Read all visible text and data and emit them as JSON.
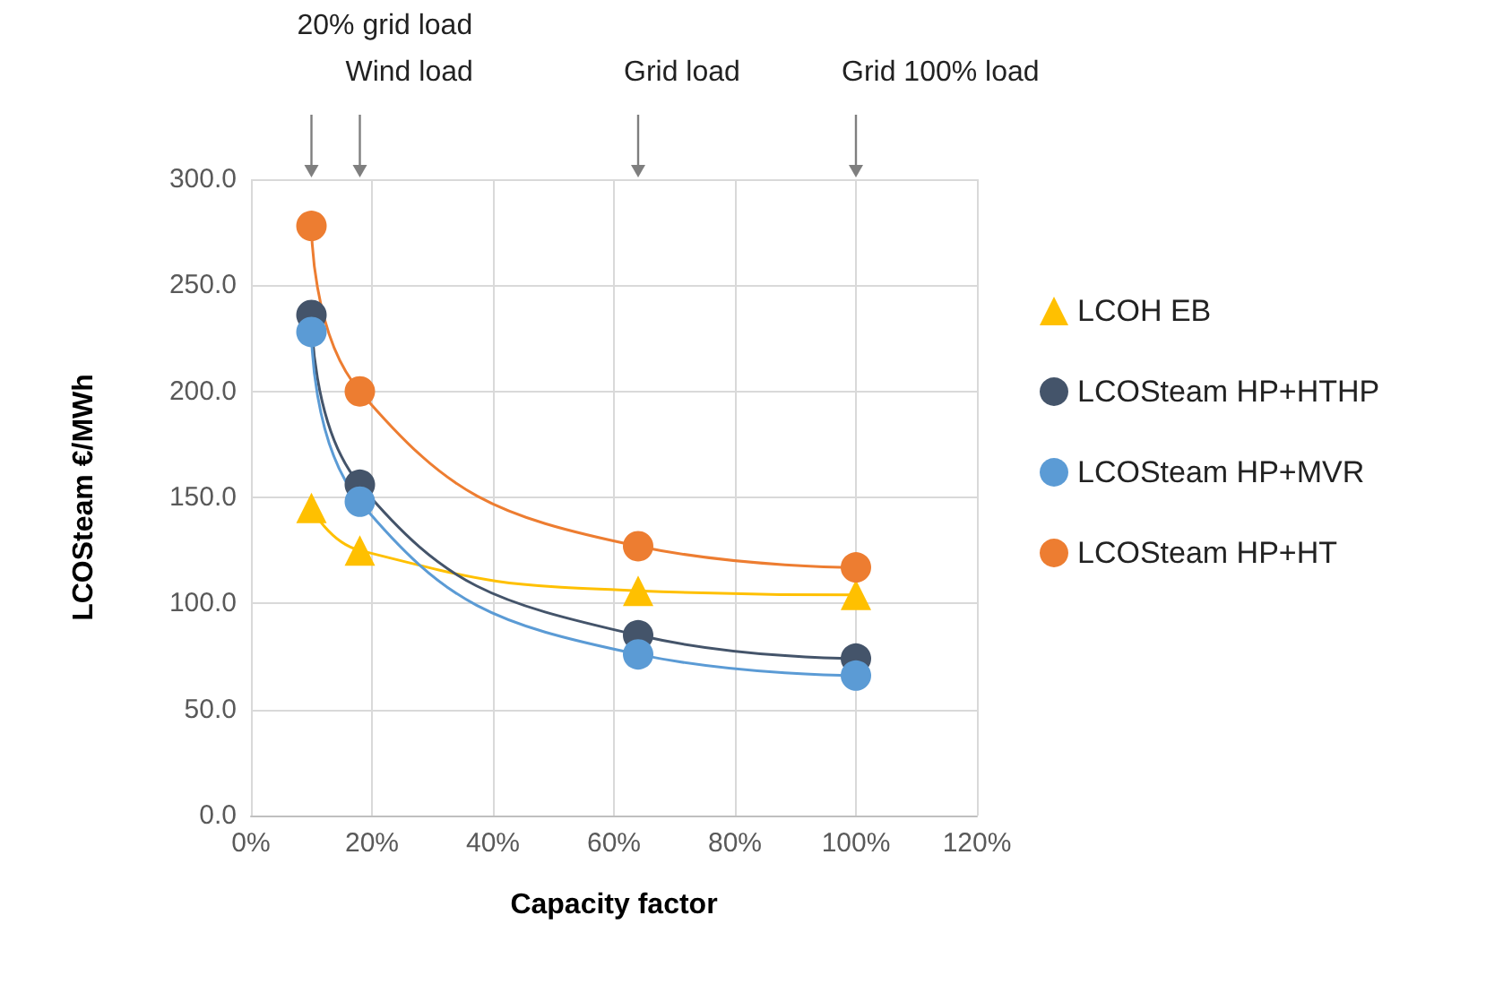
{
  "chart_data": {
    "type": "line",
    "xlabel": "Capacity factor",
    "ylabel": "LCOSteam €/MWh",
    "x": [
      10,
      18,
      64,
      100
    ],
    "series": [
      {
        "name": "LCOH EB",
        "color": "#ffc000",
        "marker": "triangle",
        "values": [
          145,
          125,
          106,
          104
        ]
      },
      {
        "name": "LCOSteam HP+HTHP",
        "color": "#44546a",
        "marker": "circle",
        "values": [
          236,
          156,
          85,
          74
        ]
      },
      {
        "name": "LCOSteam HP+MVR",
        "color": "#5b9bd5",
        "marker": "circle",
        "values": [
          228,
          148,
          76,
          66
        ]
      },
      {
        "name": "LCOSteam HP+HT",
        "color": "#ed7d31",
        "marker": "circle",
        "values": [
          278,
          200,
          127,
          117
        ]
      }
    ],
    "xlim": [
      0,
      120
    ],
    "xticks": [
      {
        "value": 0,
        "label": "0%"
      },
      {
        "value": 20,
        "label": "20%"
      },
      {
        "value": 40,
        "label": "40%"
      },
      {
        "value": 60,
        "label": "60%"
      },
      {
        "value": 80,
        "label": "80%"
      },
      {
        "value": 100,
        "label": "100%"
      },
      {
        "value": 120,
        "label": "120%"
      }
    ],
    "ylim": [
      0,
      300
    ],
    "yticks": [
      {
        "value": 0,
        "label": "0.0"
      },
      {
        "value": 50,
        "label": "50.0"
      },
      {
        "value": 100,
        "label": "100.0"
      },
      {
        "value": 150,
        "label": "150.0"
      },
      {
        "value": 200,
        "label": "200.0"
      },
      {
        "value": 250,
        "label": "250.0"
      },
      {
        "value": 300,
        "label": "300.0"
      }
    ],
    "annotations": [
      "20% grid load",
      "Wind load",
      "Grid load",
      "Grid 100% load"
    ],
    "grid": true,
    "legend": "right",
    "line_style": "solid"
  }
}
